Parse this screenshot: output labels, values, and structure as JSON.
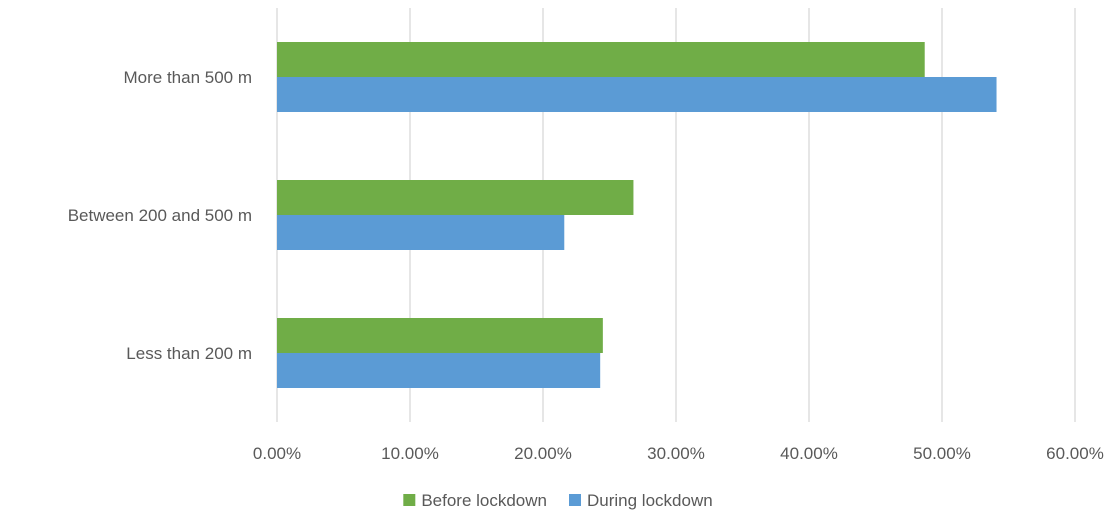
{
  "chart_data": {
    "type": "bar",
    "orientation": "horizontal",
    "categories": [
      "Less than 200 m",
      "Between 200 and 500 m",
      "More than 500 m"
    ],
    "series": [
      {
        "name": "Before lockdown",
        "color": "#70AD47",
        "values": [
          24.5,
          26.8,
          48.7
        ]
      },
      {
        "name": "During lockdown",
        "color": "#5B9BD5",
        "values": [
          24.3,
          21.6,
          54.1
        ]
      }
    ],
    "x_ticks": [
      "0.00%",
      "10.00%",
      "20.00%",
      "30.00%",
      "40.00%",
      "50.00%",
      "60.00%"
    ],
    "xlim": [
      0,
      60
    ],
    "grid": "vertical",
    "legend": "bottom",
    "title": "",
    "xlabel": "",
    "ylabel": ""
  }
}
